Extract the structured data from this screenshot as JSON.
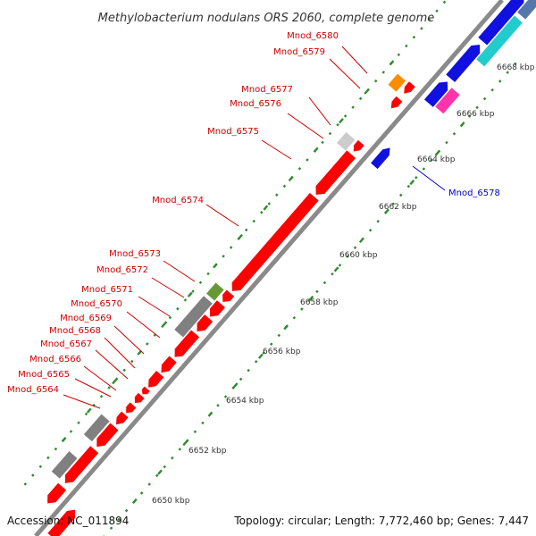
{
  "title": "Methylobacterium nodulans ORS 2060, complete genome",
  "accession": "Accession: NC_011894",
  "summary": "Topology: circular; Length: 7,772,460 bp; Genes: 7,447",
  "colors": {
    "backbone": "#8a8a8a",
    "tick": "#2e8b2e",
    "reverse_gene_label": "#cc0000",
    "forward_gene_label": "#0000cc"
  },
  "scale_ticks": [
    "6650 kbp",
    "6652 kbp",
    "6654 kbp",
    "6656 kbp",
    "6658 kbp",
    "6660 kbp",
    "6662 kbp",
    "6664 kbp",
    "6666 kbp",
    "6668 kbp"
  ],
  "gene_labels": [
    {
      "text": "Mnod_6580",
      "strand": "reverse"
    },
    {
      "text": "Mnod_6579",
      "strand": "reverse"
    },
    {
      "text": "Mnod_6577",
      "strand": "reverse"
    },
    {
      "text": "Mnod_6576",
      "strand": "reverse"
    },
    {
      "text": "Mnod_6575",
      "strand": "reverse"
    },
    {
      "text": "Mnod_6574",
      "strand": "reverse"
    },
    {
      "text": "Mnod_6573",
      "strand": "reverse"
    },
    {
      "text": "Mnod_6572",
      "strand": "reverse"
    },
    {
      "text": "Mnod_6571",
      "strand": "reverse"
    },
    {
      "text": "Mnod_6570",
      "strand": "reverse"
    },
    {
      "text": "Mnod_6569",
      "strand": "reverse"
    },
    {
      "text": "Mnod_6568",
      "strand": "reverse"
    },
    {
      "text": "Mnod_6567",
      "strand": "reverse"
    },
    {
      "text": "Mnod_6566",
      "strand": "reverse"
    },
    {
      "text": "Mnod_6565",
      "strand": "reverse"
    },
    {
      "text": "Mnod_6564",
      "strand": "reverse"
    },
    {
      "text": "Mnod_6578",
      "strand": "forward"
    }
  ]
}
